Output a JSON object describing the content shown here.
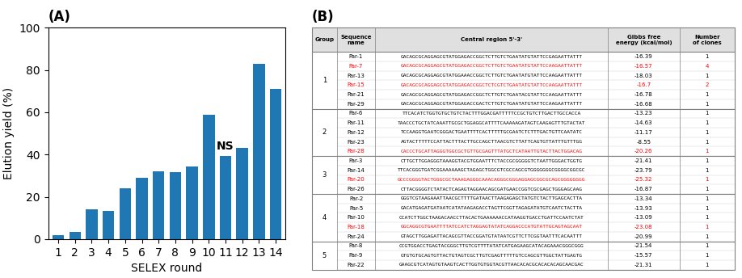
{
  "chart_data": [
    {
      "type": "bar",
      "title": "(A)",
      "xlabel": "SELEX round",
      "ylabel": "Elution yield (%)",
      "categories": [
        "1",
        "2",
        "3",
        "4",
        "5",
        "6",
        "7",
        "8",
        "9",
        "10",
        "11",
        "12",
        "13",
        "14"
      ],
      "values": [
        2,
        3.5,
        14,
        13.5,
        24,
        29,
        32,
        31.5,
        34.5,
        59,
        39.5,
        43,
        83,
        71
      ],
      "ylim": [
        0,
        100
      ],
      "yticks": [
        0,
        20,
        40,
        60,
        80,
        100
      ],
      "annotations": [
        {
          "text": "NS",
          "x": "11"
        }
      ]
    },
    {
      "type": "table",
      "title": "(B)",
      "columns": [
        "Group",
        "Sequence\nname",
        "Central region 5'-3'",
        "Gibbs free\nenergy (kcal/mol)",
        "Number\nof clones"
      ],
      "rows": [
        [
          "1",
          "Par-1",
          "GACAGCGCAGGAGCGTATGGAGACCGGCTCTTGTCTGAATATGTATTCCGAGAATTATTT",
          "-16.39",
          "1"
        ],
        [
          null,
          "Par-7",
          "GACAGCGCAGGAGCGTATGGAGACCGGCTCTTGTCTGAATATGTATTCCAAGAATTATTT",
          "-16.57",
          "4"
        ],
        [
          null,
          "Par-13",
          "GACAGCGCAGGAGCGTATGGAAACCGGCTCTTGTCTGAATATGTATTCCAAGAATTATTT",
          "-18.03",
          "1"
        ],
        [
          null,
          "Par-15",
          "GACAGCGCAGGAGCGTATGGAGACCGGCTCTCGTCTGAATATGTATTCCAAGAATTATTT",
          "-16.7",
          "2"
        ],
        [
          null,
          "Par-21",
          "GACAGCGCAGGAGCGTATGGAGACCGGCTCTTGTCTGAATACGTATTCCAAGAATTATTT",
          "-16.78",
          "1"
        ],
        [
          null,
          "Par-29",
          "GACAGCGCAGGAGCGTATGGAGACCGACTCTTGTCTGAATATGTATTCCAAGAATTATTT",
          "-16.68",
          "1"
        ],
        [
          "2",
          "Par-6",
          "TTCACATCTGGTGTGCTGTCTACTTTGGACGATTTTTCCGCTGTCTTGACTTGCCACCA",
          "-13.23",
          "1"
        ],
        [
          null,
          "Par-11",
          "TAACCCTGCTATCAAATTGCGCTGGAGGCATTTTCAAAAAGATAGTCAAGAGTTTGTACTAT",
          "-14.63",
          "1"
        ],
        [
          null,
          "Par-12",
          "TCCAAGGTGAATCGGGACTGAATTTTCACTTTTTGCGAATCTCTTTGACTGTTCAATATC",
          "-11.17",
          "1"
        ],
        [
          null,
          "Par-23",
          "AGTACTTTTTCCATTACTTTACTTGCCAGCTTAACGTCTTATTCAGTGTTATTTGTTTGG",
          "-8.55",
          "1"
        ],
        [
          null,
          "Par-28",
          "CACCCTGCATTAGGGTGGCGCTGTTGCGAGTTTATGCTCATAATTGTACTTACTGGACAG",
          "-20.26",
          "1"
        ],
        [
          "3",
          "Par-3",
          "CTTGCTTGGAGGGTAAAGGTACGTGGAATTTCTACCGCGGGGGTCTAATTGGGACTGGTG",
          "-21.41",
          "1"
        ],
        [
          null,
          "Par-14",
          "TTCACGGGTGATCGGAAAAAAGCTAGAGCTGGCGTCGCCAGCGTGGGGGGGCGGGGCGGCGC",
          "-23.79",
          "1"
        ],
        [
          null,
          "Par-20",
          "GCCCGGGGTACTGGGCGCTAAAGAGGGCAAACAGGGCGGGAGGAGCGGCGCAGCGGGGGGGG",
          "-25.32",
          "1"
        ],
        [
          null,
          "Par-26",
          "CTTACGGGGTCTATACTCAGAGTAGGAACAGCGATGAACCGGTCGCGAGCTGGGAGCAAG",
          "-16.87",
          "1"
        ],
        [
          "4",
          "Par-2",
          "GGGTCGTAAGAAATTAACGCTTTTGATAACTTAAGAGAGCTATGTCTACTTGAGCACTTA",
          "-13.34",
          "1"
        ],
        [
          null,
          "Par-5",
          "GACATGAGATGATAATCATATAAGAGACCTAGTTCGGTTAGAGATATGTCAATCTACTTA",
          "-13.93",
          "1"
        ],
        [
          null,
          "Par-10",
          "CCATCTTGGCTAAGACAACCTTACACTGAAAAAACCATAAGGTGACCTGATTCCAATCTAT",
          "-13.09",
          "1"
        ],
        [
          null,
          "Par-18",
          "GGCAGGCGTGAATTTTATCCATCTAGGAGTATATCAGGACCCATGTATTGCAGTAGCAAT",
          "-23.08",
          "1"
        ],
        [
          null,
          "Par-24",
          "GTAGCTTGGAGATTACAGCGTTACCGGATGTATAATCGTTCTTCGGTAATTTCACAATTT",
          "-20.99",
          "1"
        ],
        [
          "5",
          "Par-8",
          "CCGTGGACCTGAGTACGGGCTTGTCGTTTTATATCATGAGAAGCATACAGAAACGGGCGGG",
          "-21.54",
          "1"
        ],
        [
          null,
          "Par-9",
          "GTGTGTGCAGTGTTACTGTAGTCGCTTGTCGAGTTTTTGTCCAGCGTTGGCTATTGAGTG",
          "-15.57",
          "1"
        ],
        [
          null,
          "Par-22",
          "GAAGCGTCATAGTGTAAGTCACTTGGTGTGGTACGTTAACACACGCACACACAGCAACGAC",
          "-21.31",
          "1"
        ]
      ],
      "colors": [
        "black",
        "red",
        "black",
        "red",
        "black",
        "black",
        "black",
        "black",
        "black",
        "black",
        "red",
        "black",
        "black",
        "red",
        "black",
        "black",
        "black",
        "black",
        "red",
        "black",
        "black",
        "black",
        "black"
      ]
    }
  ]
}
